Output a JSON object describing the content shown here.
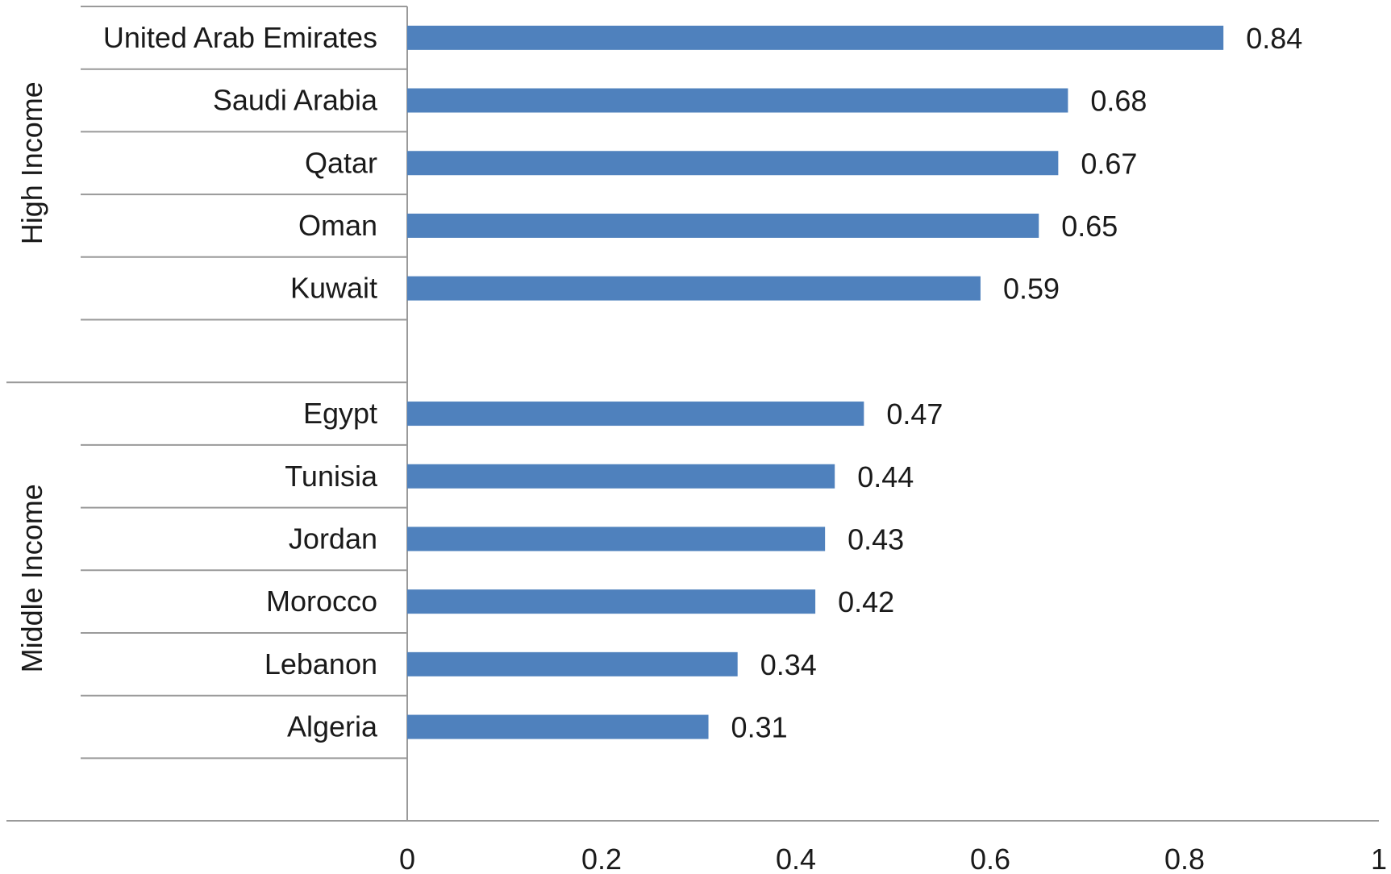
{
  "chart_data": {
    "type": "bar",
    "orientation": "horizontal",
    "xlim": [
      0,
      1
    ],
    "x_ticks": [
      "0",
      "0.2",
      "0.4",
      "0.6",
      "0.8",
      "1"
    ],
    "x_tick_values": [
      0,
      0.2,
      0.4,
      0.6,
      0.8,
      1
    ],
    "grid": false,
    "legend": "none",
    "bar_color": "#4F81BD",
    "groups": [
      {
        "label": "High Income",
        "categories": [
          "United Arab Emirates",
          "Saudi Arabia",
          "Qatar",
          "Oman",
          "Kuwait"
        ],
        "values": [
          0.84,
          0.68,
          0.67,
          0.65,
          0.59
        ],
        "value_labels": [
          "0.84",
          "0.68",
          "0.67",
          "0.65",
          "0.59"
        ]
      },
      {
        "label": "Middle Income",
        "categories": [
          "Egypt",
          "Tunisia",
          "Jordan",
          "Morocco",
          "Lebanon",
          "Algeria"
        ],
        "values": [
          0.47,
          0.44,
          0.43,
          0.42,
          0.34,
          0.31
        ],
        "value_labels": [
          "0.47",
          "0.44",
          "0.43",
          "0.42",
          "0.34",
          "0.31"
        ]
      }
    ]
  }
}
